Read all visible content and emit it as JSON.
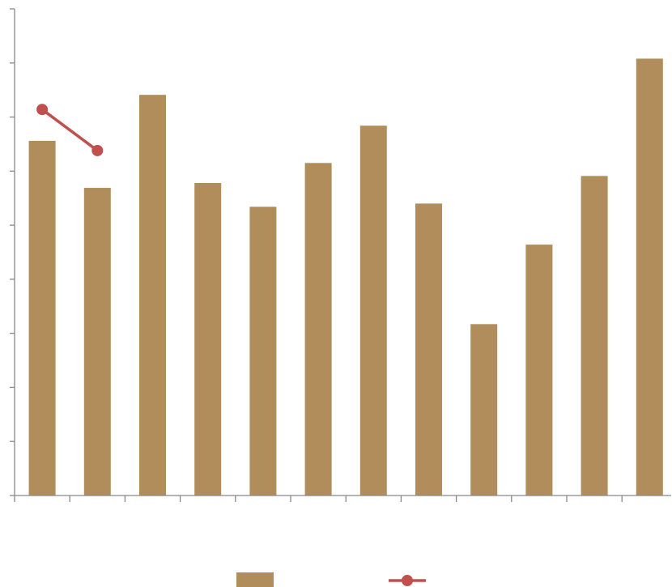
{
  "chart_data": {
    "type": "bar",
    "categories": [
      null,
      null,
      null,
      null,
      null,
      null,
      null,
      null,
      null,
      null,
      null,
      null
    ],
    "series": [
      {
        "type": "bar",
        "color": "#b08d5a",
        "values": [
          6.56,
          5.69,
          7.41,
          5.78,
          5.34,
          6.15,
          6.84,
          5.4,
          3.17,
          4.64,
          5.91,
          8.08
        ]
      },
      {
        "type": "line",
        "color": "#c0504d",
        "values": [
          7.14,
          6.38,
          null,
          null,
          null,
          null,
          null,
          null,
          null,
          null,
          null,
          null
        ]
      }
    ],
    "ylim": [
      0,
      9
    ],
    "yticks": [
      0,
      1,
      2,
      3,
      4,
      5,
      6,
      7,
      8,
      9
    ],
    "grid": false,
    "legend": "bottom"
  }
}
